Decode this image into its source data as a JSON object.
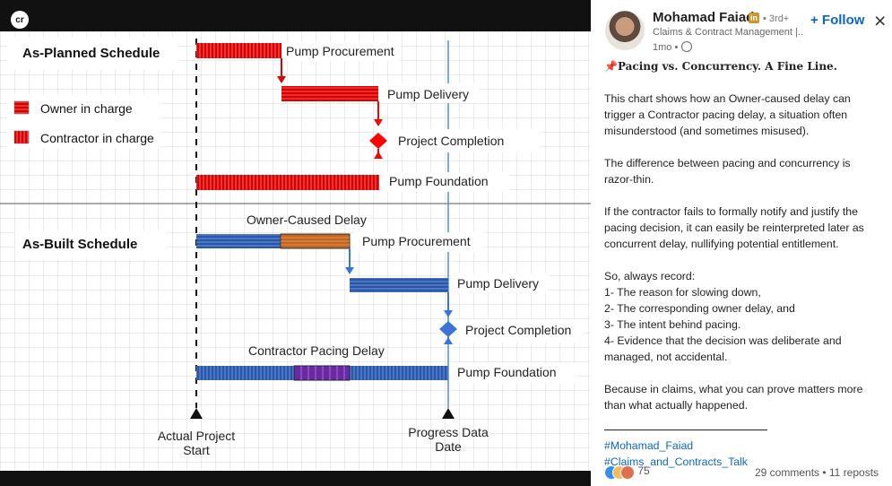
{
  "image": {
    "logo_text": "cr",
    "as_planned_title": "As-Planned Schedule",
    "as_built_title": "As-Built Schedule",
    "legend_owner": "Owner in charge",
    "legend_contractor": "Contractor in charge",
    "planned_labels": [
      "Pump Procurement",
      "Pump Delivery",
      "Project Completion",
      "Pump Foundation"
    ],
    "built_labels": [
      "Owner-Caused Delay",
      "Pump Procurement",
      "Pump Delivery",
      "Project Completion",
      "Contractor Pacing Delay",
      "Pump Foundation"
    ],
    "axis_left_label": [
      "Actual Project",
      "Start"
    ],
    "axis_right_label": [
      "Progress Data",
      "Date"
    ],
    "colors": {
      "planned": "#d80000",
      "built": "#2a56a8",
      "owner_delay": "#c16523",
      "pacing_delay": "#6a2aa3",
      "milestone_red": "#ff0000",
      "milestone_blue": "#3b74d6",
      "grid": "#d7d7d7"
    }
  },
  "post": {
    "author": "Mohamad Faiad",
    "linkedin_badge": "in",
    "degree": "• 3rd+",
    "headline": "Claims & Contract Management |...",
    "time": "1mo •",
    "follow": "+ Follow",
    "close": "×",
    "title": "📌Pacing vs. Concurrency. A Fine Line.",
    "p1": "This chart shows how an Owner-caused delay can trigger a Contractor pacing delay, a situation often misunderstood (and sometimes misused).",
    "p2": "The difference between pacing and concurrency is razor-thin.",
    "p3": " If the contractor fails to formally notify and justify the pacing decision, it can easily be reinterpreted later as concurrent delay, nullifying potential entitlement.",
    "list_intro": "So, always record:",
    "list": [
      "1- The reason for slowing down,",
      "2- The corresponding owner delay, and",
      "3- The intent behind pacing.",
      "4- Evidence that the decision was deliberate and managed, not accidental."
    ],
    "conclusion": "Because in claims, what you can prove matters more than what actually happened.",
    "hashtags": [
      "#Mohamad_Faiad",
      "#Claims_and_Contracts_Talk"
    ],
    "reactions": "75",
    "comments": "29 comments • 11 reposts"
  }
}
